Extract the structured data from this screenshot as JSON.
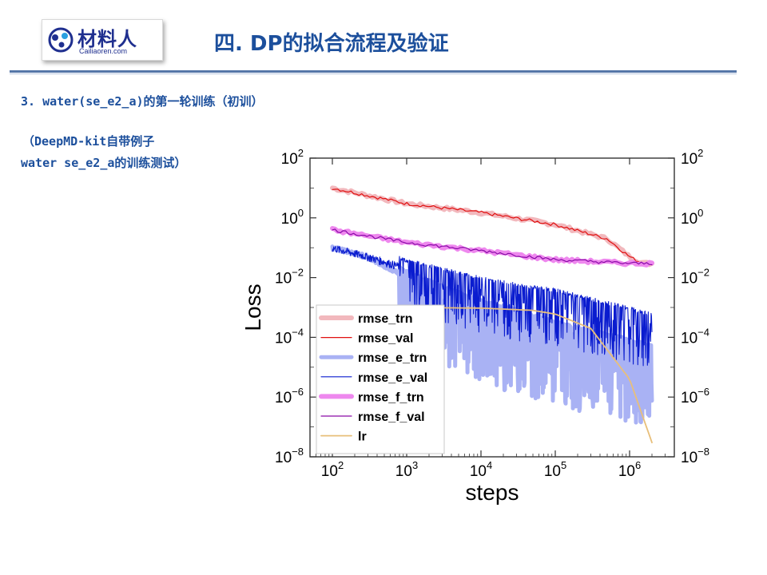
{
  "logo": {
    "brand": "材料人",
    "domain": "Cailiaoren.com"
  },
  "header": {
    "title": "四. DP的拟合流程及验证"
  },
  "section": {
    "heading": "3. water(se_e2_a)的第一轮训练（初训）"
  },
  "note": {
    "line1": "（DeepMD-kit自带例子",
    "line2": "water se_e2_a的训练测试）"
  },
  "colors": {
    "accent": "#1c4f9c",
    "rmse_trn": "#f2b8bd",
    "rmse_val": "#e01010",
    "rmse_e_trn": "#a9b2f4",
    "rmse_e_val": "#0a1ccf",
    "rmse_f_trn": "#ee88ee",
    "rmse_f_val": "#8a0aa8",
    "lr": "#e8bf7a"
  },
  "chart_data": {
    "type": "line",
    "xlabel": "steps",
    "ylabel": "Loss",
    "xscale": "log",
    "yscale": "log",
    "xlim": [
      50,
      4000000
    ],
    "ylim": [
      1e-08,
      100
    ],
    "xticks": [
      "10^2",
      "10^3",
      "10^4",
      "10^5",
      "10^6"
    ],
    "yticks": [
      "10^-8",
      "10^-6",
      "10^-4",
      "10^-2",
      "10^0",
      "10^2"
    ],
    "grid": false,
    "legend": "bottom-left",
    "series": [
      {
        "name": "rmse_trn",
        "x": [
          100,
          1000,
          10000,
          100000,
          500000,
          1000000,
          1500000,
          2000000
        ],
        "y": [
          10,
          3,
          1.5,
          0.6,
          0.2,
          0.05,
          0.03,
          0.03
        ]
      },
      {
        "name": "rmse_val",
        "x": [
          100,
          1000,
          10000,
          100000,
          500000,
          1000000,
          1500000,
          2000000
        ],
        "y": [
          10,
          3,
          1.5,
          0.6,
          0.2,
          0.05,
          0.03,
          0.03
        ]
      },
      {
        "name": "rmse_e_trn",
        "x": [
          100,
          300,
          1000,
          3000,
          10000,
          30000,
          100000,
          300000,
          1000000,
          2000000
        ],
        "y": [
          0.1,
          0.05,
          0.01,
          0.003,
          0.001,
          0.0005,
          0.0002,
          0.0001,
          5e-05,
          3e-05
        ]
      },
      {
        "name": "rmse_e_val",
        "x": [
          100,
          300,
          1000,
          3000,
          10000,
          30000,
          100000,
          300000,
          1000000,
          2000000
        ],
        "y": [
          0.1,
          0.05,
          0.02,
          0.01,
          0.005,
          0.003,
          0.002,
          0.001,
          0.0005,
          0.0003
        ]
      },
      {
        "name": "rmse_f_trn",
        "x": [
          100,
          1000,
          10000,
          100000,
          1000000,
          2000000
        ],
        "y": [
          0.4,
          0.15,
          0.08,
          0.04,
          0.03,
          0.03
        ]
      },
      {
        "name": "rmse_f_val",
        "x": [
          100,
          1000,
          10000,
          100000,
          1000000,
          2000000
        ],
        "y": [
          0.4,
          0.15,
          0.08,
          0.04,
          0.03,
          0.03
        ]
      },
      {
        "name": "lr",
        "x": [
          100,
          1000,
          10000,
          50000,
          100000,
          300000,
          1000000,
          2000000
        ],
        "y": [
          0.001,
          0.001,
          0.00095,
          0.0008,
          0.0006,
          0.0002,
          4e-06,
          3e-08
        ]
      }
    ]
  }
}
